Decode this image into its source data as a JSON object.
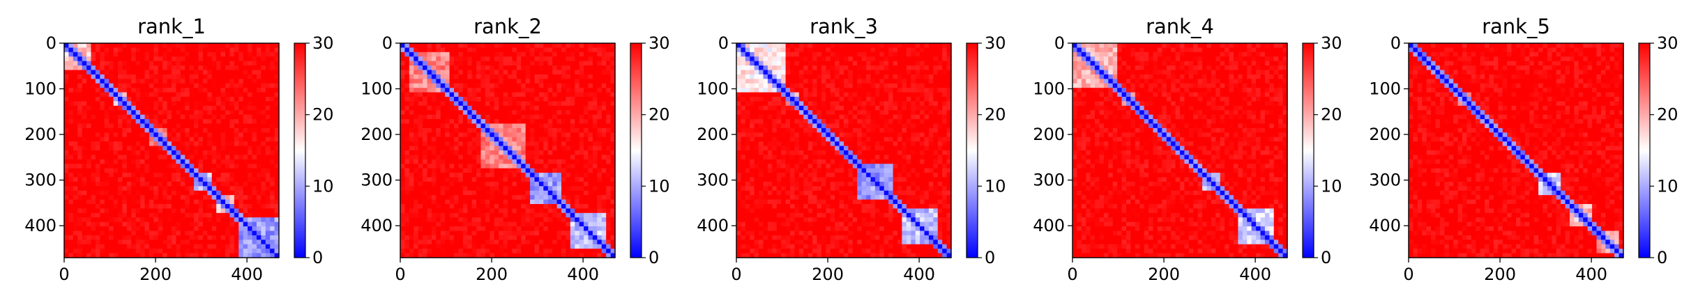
{
  "figure": {
    "background": "#ffffff",
    "colormap": [
      "#0000ff",
      "#ffffff",
      "#ff0000"
    ],
    "cmap_name": "bwr"
  },
  "chart_data": [
    {
      "type": "heatmap",
      "title": "rank_1",
      "xlim": [
        0,
        470
      ],
      "ylim": [
        470,
        0
      ],
      "xticks": [
        0,
        200,
        400
      ],
      "yticks": [
        0,
        100,
        200,
        300,
        400
      ],
      "colorbar": {
        "range": [
          0,
          30
        ],
        "ticks": [
          0,
          10,
          20,
          30
        ]
      },
      "diagonal_domains": [
        {
          "start": 0,
          "end": 60,
          "strength": 0.6
        },
        {
          "start": 105,
          "end": 135,
          "strength": 0.7
        },
        {
          "start": 185,
          "end": 230,
          "strength": 0.45
        },
        {
          "start": 280,
          "end": 320,
          "strength": 0.9
        },
        {
          "start": 330,
          "end": 370,
          "strength": 0.6
        },
        {
          "start": 385,
          "end": 470,
          "strength": 1.0
        }
      ]
    },
    {
      "type": "heatmap",
      "title": "rank_2",
      "xlim": [
        0,
        470
      ],
      "ylim": [
        470,
        0
      ],
      "xticks": [
        0,
        200,
        400
      ],
      "yticks": [
        0,
        100,
        200,
        300,
        400
      ],
      "colorbar": {
        "range": [
          0,
          30
        ],
        "ticks": [
          0,
          10,
          20,
          30
        ]
      },
      "diagonal_domains": [
        {
          "start": 20,
          "end": 110,
          "strength": 0.45
        },
        {
          "start": 180,
          "end": 270,
          "strength": 0.45
        },
        {
          "start": 280,
          "end": 350,
          "strength": 1.0
        },
        {
          "start": 370,
          "end": 450,
          "strength": 0.9
        }
      ]
    },
    {
      "type": "heatmap",
      "title": "rank_3",
      "xlim": [
        0,
        470
      ],
      "ylim": [
        470,
        0
      ],
      "xticks": [
        0,
        200,
        400
      ],
      "yticks": [
        0,
        100,
        200,
        300,
        400
      ],
      "colorbar": {
        "range": [
          0,
          30
        ],
        "ticks": [
          0,
          10,
          20,
          30
        ]
      },
      "diagonal_domains": [
        {
          "start": 0,
          "end": 110,
          "strength": 0.7
        },
        {
          "start": 110,
          "end": 140,
          "strength": 0.5
        },
        {
          "start": 260,
          "end": 340,
          "strength": 1.0
        },
        {
          "start": 360,
          "end": 440,
          "strength": 0.9
        }
      ]
    },
    {
      "type": "heatmap",
      "title": "rank_4",
      "xlim": [
        0,
        470
      ],
      "ylim": [
        470,
        0
      ],
      "xticks": [
        0,
        200,
        400
      ],
      "yticks": [
        0,
        100,
        200,
        300,
        400
      ],
      "colorbar": {
        "range": [
          0,
          30
        ],
        "ticks": [
          0,
          10,
          20,
          30
        ]
      },
      "diagonal_domains": [
        {
          "start": 0,
          "end": 100,
          "strength": 0.55
        },
        {
          "start": 105,
          "end": 135,
          "strength": 0.55
        },
        {
          "start": 280,
          "end": 320,
          "strength": 0.85
        },
        {
          "start": 360,
          "end": 440,
          "strength": 0.85
        }
      ]
    },
    {
      "type": "heatmap",
      "title": "rank_5",
      "xlim": [
        0,
        470
      ],
      "ylim": [
        470,
        0
      ],
      "xticks": [
        0,
        200,
        400
      ],
      "yticks": [
        0,
        100,
        200,
        300,
        400
      ],
      "colorbar": {
        "range": [
          0,
          30
        ],
        "ticks": [
          0,
          10,
          20,
          30
        ]
      },
      "diagonal_domains": [
        {
          "start": 105,
          "end": 135,
          "strength": 0.55
        },
        {
          "start": 280,
          "end": 330,
          "strength": 0.85
        },
        {
          "start": 350,
          "end": 400,
          "strength": 0.6
        },
        {
          "start": 410,
          "end": 460,
          "strength": 0.5
        }
      ]
    }
  ]
}
